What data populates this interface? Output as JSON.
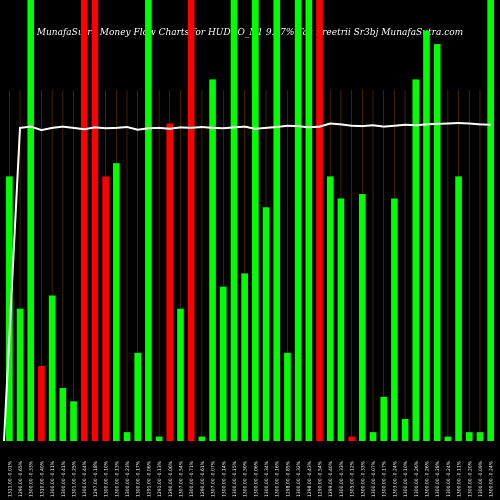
{
  "title": "MunafaSutra  Money Flow  Charts for HUDCO_N1          9.17% Tax Freetrii    Sr3bj MunafaSutra.com",
  "colors": {
    "background": "#000000",
    "up": "#00ff00",
    "down": "#ff0000",
    "grid": "#cc6600",
    "line": "#ffffff",
    "label": "#ffffff"
  },
  "chart_data": {
    "type": "bar",
    "ylim": [
      0,
      100
    ],
    "categories": [
      "1311.00 -0.01%",
      "1290.00 -0.65%",
      "1300.00 -0.33%",
      "1310.00 -0.40%",
      "1300.00 -0.11%",
      "1300.00 -0.41%",
      "1301.00 -0.25%",
      "1300.00 -0.44%",
      "1297.00 -0.18%",
      "1300.00 -0.10%",
      "1300.00 -0.13%",
      "1300.00 -0.23%",
      "1300.00 -0.17%",
      "1291.00 -0.06%",
      "1291.00 -0.13%",
      "1290.00 -0.06%",
      "1307.00 -0.54%",
      "1300.00 -0.71%",
      "1290.00 -0.61%",
      "1307.00 -0.07%",
      "1300.00 -0.14%",
      "1300.00 -0.15%",
      "1300.00 -0.30%",
      "1300.00 -0.06%",
      "1300.00 -0.34%",
      "1300.00 -0.16%",
      "1298.00 -0.85%",
      "1300.00 -0.32%",
      "1298.00 -0.43%",
      "1290.00 -0.54%",
      "1299.00 -0.40%",
      "1300.00 -0.33%",
      "1305.00 -0.12%",
      "1300.00 -0.33%",
      "1300.00 -0.07%",
      "1300.00 -0.17%",
      "1303.00 -0.24%",
      "1300.00 -0.10%",
      "1300.00 -0.26%",
      "1300.00 -0.26%",
      "1300.00 -0.28%",
      "1300.00 -0.24%",
      "1300.00 -0.11%",
      "1300.00 -0.20%",
      "1300.00 -0.09%",
      "1300.00 -0.24%"
    ],
    "series": [
      {
        "values": [
          60,
          30,
          100,
          17,
          33,
          12,
          9,
          100,
          100,
          60,
          63,
          2,
          20,
          100,
          1,
          72,
          30,
          100,
          1,
          82,
          35,
          100,
          38,
          100,
          53,
          100,
          20,
          100,
          100,
          100,
          60,
          55,
          1,
          56,
          2,
          10,
          55,
          5,
          82,
          93,
          90,
          1,
          60,
          2,
          2,
          100
        ],
        "directions": [
          "up",
          "up",
          "up",
          "down",
          "up",
          "up",
          "up",
          "down",
          "down",
          "down",
          "up",
          "up",
          "up",
          "up",
          "up",
          "down",
          "up",
          "down",
          "up",
          "up",
          "up",
          "up",
          "up",
          "up",
          "up",
          "up",
          "up",
          "up",
          "up",
          "down",
          "up",
          "up",
          "down",
          "up",
          "up",
          "up",
          "up",
          "up",
          "up",
          "up",
          "up",
          "up",
          "up",
          "up",
          "up",
          "up"
        ]
      },
      {
        "type": "line",
        "values": [
          0,
          71,
          71.3,
          70.5,
          71,
          71.3,
          71,
          70.7,
          71.1,
          70.9,
          71,
          71.2,
          70.6,
          70.9,
          71,
          70.8,
          71.1,
          71,
          71.2,
          71,
          70.9,
          71.1,
          71.3,
          70.8,
          71,
          71.2,
          71.5,
          71.4,
          71.1,
          71.3,
          72,
          71.8,
          71.5,
          71.4,
          71.6,
          71.3,
          71.5,
          71.7,
          71.6,
          71.8,
          71.9,
          72,
          72.1,
          72,
          71.8,
          71.7
        ]
      }
    ]
  }
}
